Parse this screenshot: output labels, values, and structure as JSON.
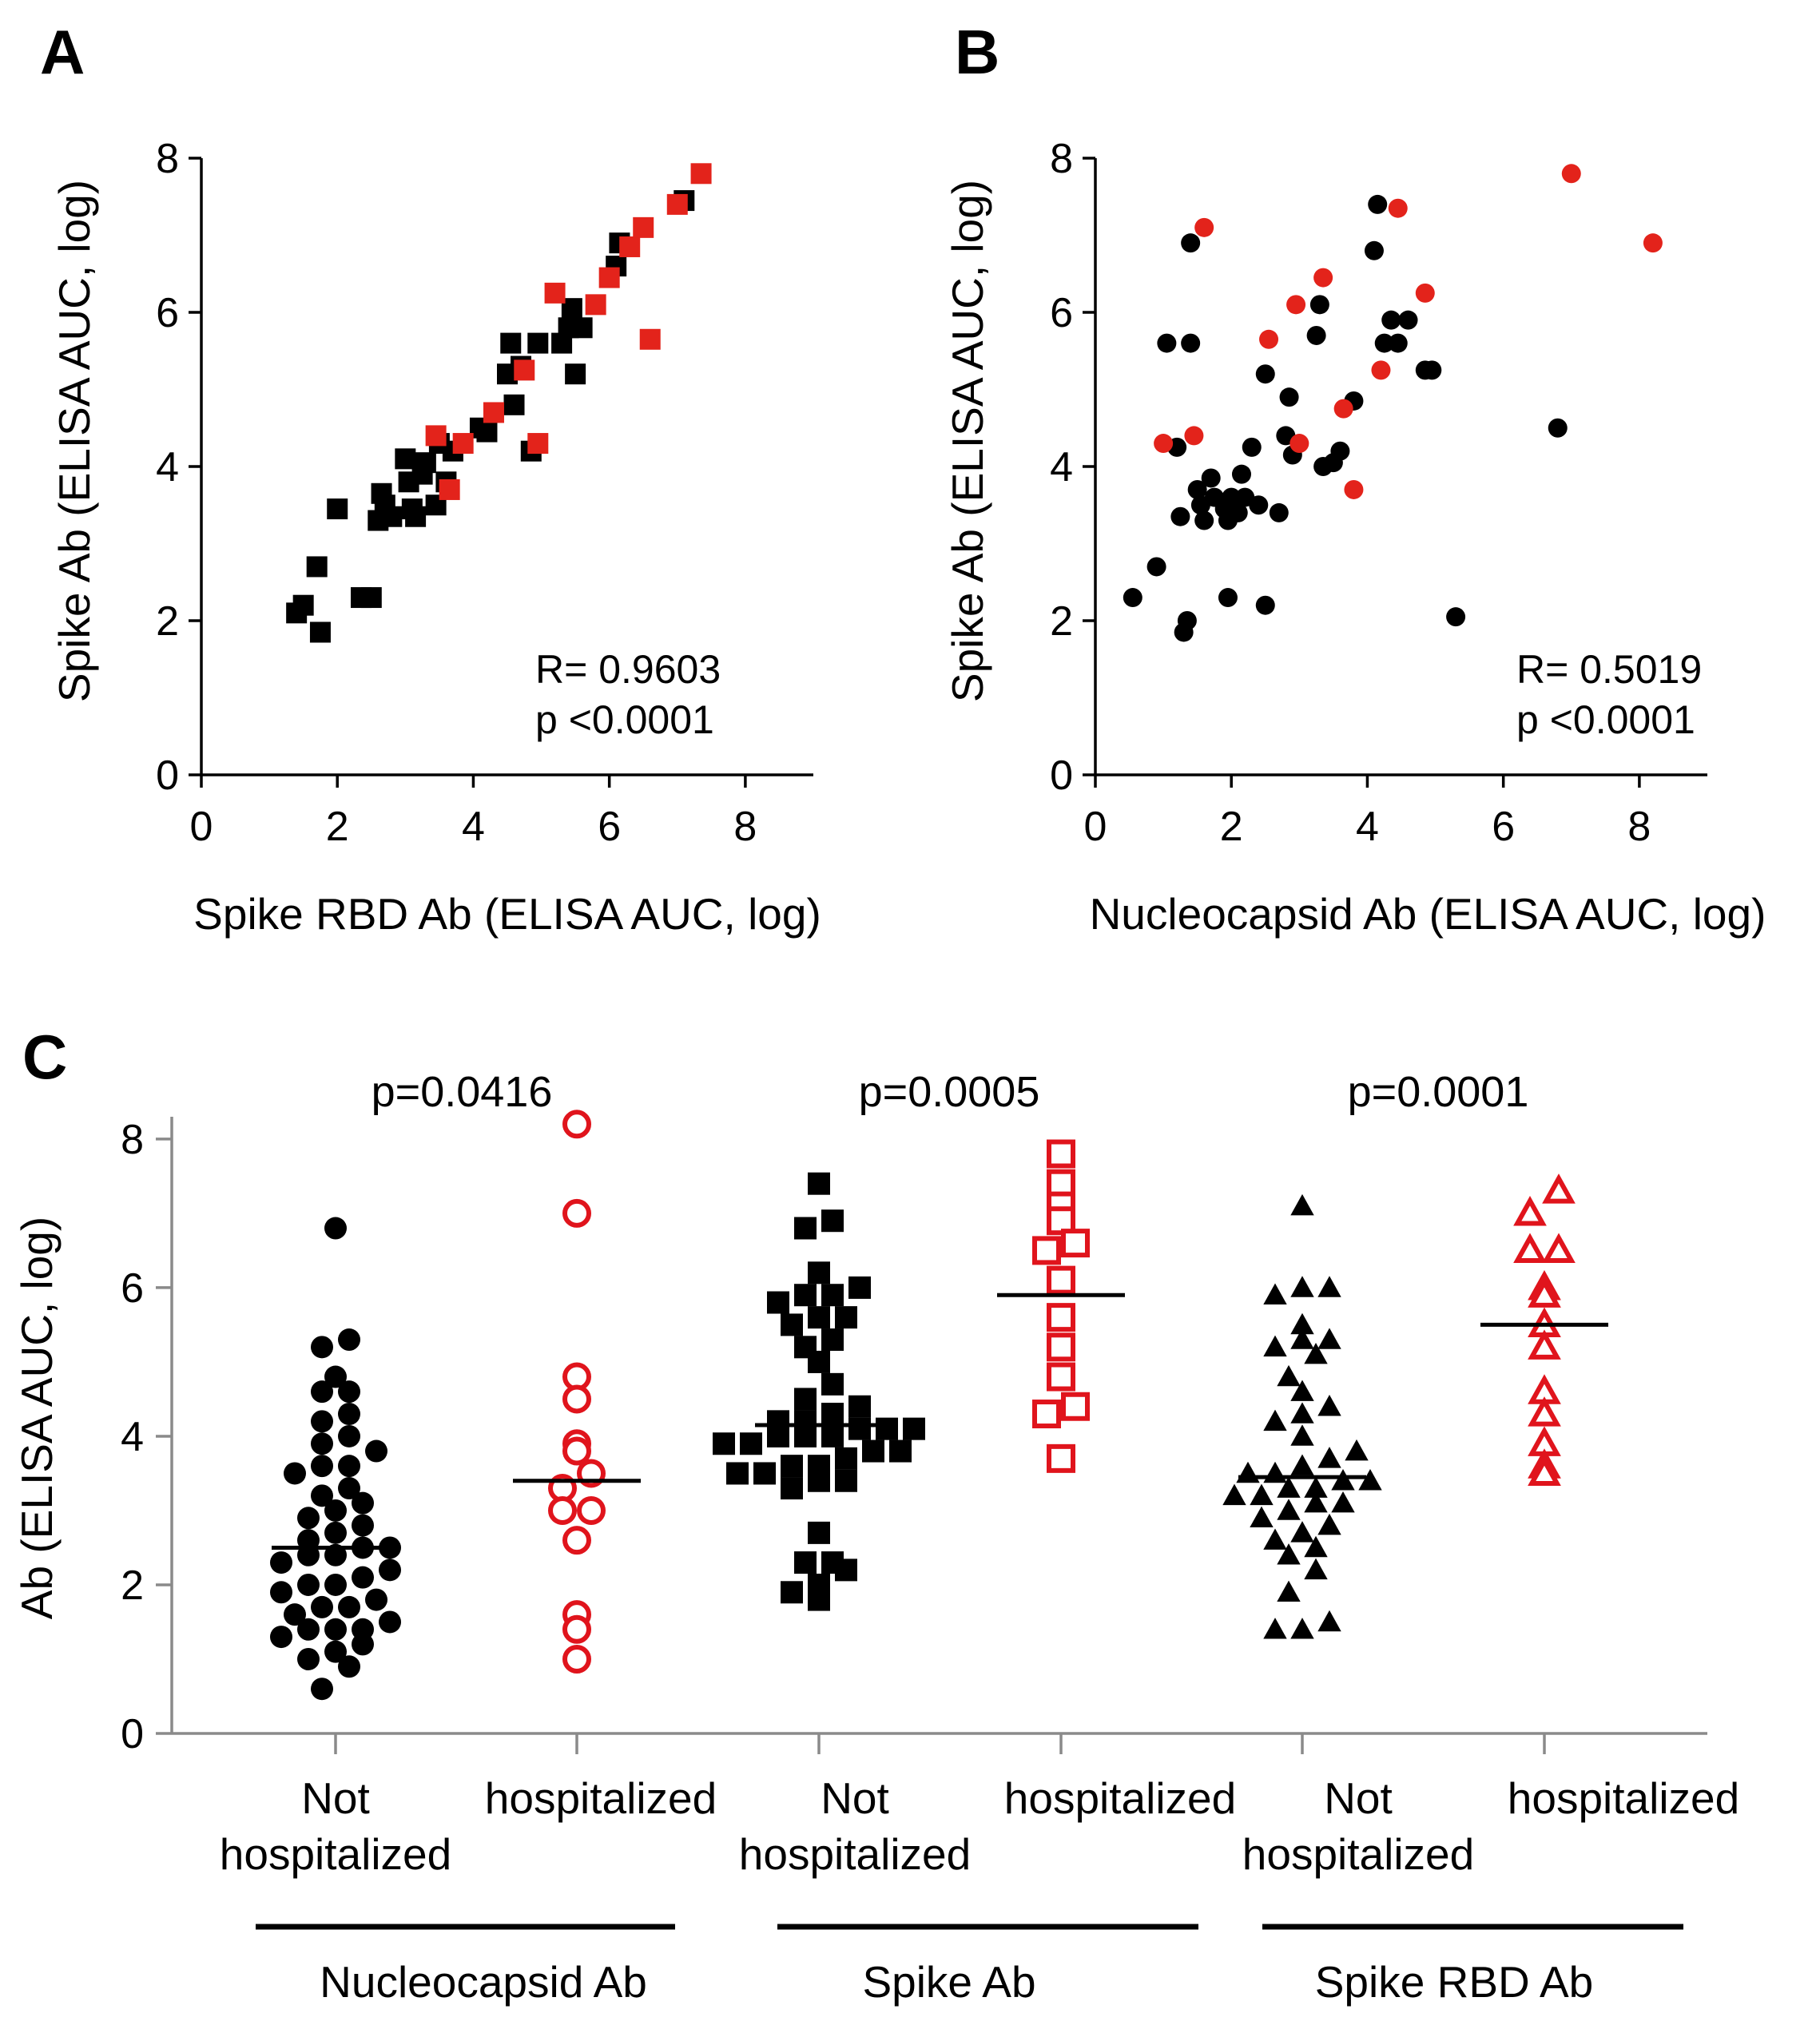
{
  "colors": {
    "black": "#000000",
    "red": "#e3231b",
    "red_open": "#e0141c",
    "axis_c": "#8a8a8a"
  },
  "chart_data": [
    {
      "panel": "A",
      "type": "scatter",
      "xlabel": "Spike RBD Ab (ELISA AUC, log)",
      "ylabel": "Spike Ab (ELISA AUC, log)",
      "xlim": [
        0,
        9
      ],
      "ylim": [
        0,
        8
      ],
      "xticks": [
        "0",
        "2",
        "4",
        "6",
        "8"
      ],
      "yticks": [
        "0",
        "2",
        "4",
        "6",
        "8"
      ],
      "grid": false,
      "marker": "square",
      "annotation": {
        "r": "R= 0.9603",
        "p": "p <0.0001"
      },
      "series": [
        {
          "name": "Not hospitalized",
          "color": "#000000",
          "points": [
            [
              1.4,
              2.1
            ],
            [
              1.5,
              2.2
            ],
            [
              1.7,
              2.7
            ],
            [
              1.75,
              1.85
            ],
            [
              2.0,
              3.45
            ],
            [
              2.35,
              2.3
            ],
            [
              2.5,
              2.3
            ],
            [
              2.6,
              3.3
            ],
            [
              2.65,
              3.65
            ],
            [
              2.7,
              3.5
            ],
            [
              2.8,
              3.35
            ],
            [
              3.0,
              4.1
            ],
            [
              3.05,
              3.8
            ],
            [
              3.1,
              3.45
            ],
            [
              3.15,
              3.35
            ],
            [
              3.25,
              3.9
            ],
            [
              3.3,
              4.05
            ],
            [
              3.45,
              3.5
            ],
            [
              3.5,
              4.3
            ],
            [
              3.6,
              3.8
            ],
            [
              3.7,
              4.2
            ],
            [
              4.1,
              4.5
            ],
            [
              4.2,
              4.45
            ],
            [
              4.5,
              5.2
            ],
            [
              4.55,
              5.6
            ],
            [
              4.6,
              4.8
            ],
            [
              4.7,
              5.3
            ],
            [
              4.85,
              4.2
            ],
            [
              4.95,
              5.6
            ],
            [
              5.3,
              5.6
            ],
            [
              5.4,
              5.8
            ],
            [
              5.45,
              6.05
            ],
            [
              5.5,
              5.2
            ],
            [
              5.6,
              5.8
            ],
            [
              6.1,
              6.6
            ],
            [
              6.15,
              6.9
            ],
            [
              7.1,
              7.45
            ]
          ]
        },
        {
          "name": "hospitalized",
          "color": "#e3231b",
          "points": [
            [
              3.45,
              4.4
            ],
            [
              3.65,
              3.7
            ],
            [
              3.85,
              4.3
            ],
            [
              4.3,
              4.7
            ],
            [
              4.75,
              5.25
            ],
            [
              4.95,
              4.3
            ],
            [
              5.2,
              6.25
            ],
            [
              5.8,
              6.1
            ],
            [
              6.0,
              6.45
            ],
            [
              6.3,
              6.85
            ],
            [
              6.5,
              7.1
            ],
            [
              6.6,
              5.65
            ],
            [
              7.0,
              7.4
            ],
            [
              7.35,
              7.8
            ]
          ]
        }
      ]
    },
    {
      "panel": "B",
      "type": "scatter",
      "xlabel": "Nucleocapsid Ab (ELISA AUC, log)",
      "ylabel": "Spike Ab (ELISA AUC, log)",
      "xlim": [
        0,
        9
      ],
      "ylim": [
        0,
        8
      ],
      "xticks": [
        "0",
        "2",
        "4",
        "6",
        "8"
      ],
      "yticks": [
        "0",
        "2",
        "4",
        "6",
        "8"
      ],
      "grid": false,
      "marker": "circle",
      "annotation": {
        "r": "R= 0.5019",
        "p": "p <0.0001"
      },
      "series": [
        {
          "name": "Not hospitalized",
          "color": "#000000",
          "points": [
            [
              0.55,
              2.3
            ],
            [
              0.9,
              2.7
            ],
            [
              1.05,
              5.6
            ],
            [
              1.2,
              4.25
            ],
            [
              1.25,
              3.35
            ],
            [
              1.3,
              1.85
            ],
            [
              1.35,
              2.0
            ],
            [
              1.4,
              5.6
            ],
            [
              1.4,
              6.9
            ],
            [
              1.5,
              3.7
            ],
            [
              1.55,
              3.5
            ],
            [
              1.6,
              3.3
            ],
            [
              1.7,
              3.85
            ],
            [
              1.75,
              3.6
            ],
            [
              1.9,
              3.45
            ],
            [
              1.95,
              3.3
            ],
            [
              1.95,
              2.3
            ],
            [
              2.0,
              3.6
            ],
            [
              2.1,
              3.4
            ],
            [
              2.15,
              3.9
            ],
            [
              2.2,
              3.6
            ],
            [
              2.3,
              4.25
            ],
            [
              2.4,
              3.5
            ],
            [
              2.5,
              5.2
            ],
            [
              2.5,
              2.2
            ],
            [
              2.7,
              3.4
            ],
            [
              2.8,
              4.4
            ],
            [
              2.85,
              4.9
            ],
            [
              2.9,
              4.15
            ],
            [
              3.25,
              5.7
            ],
            [
              3.3,
              6.1
            ],
            [
              3.35,
              4.0
            ],
            [
              3.5,
              4.05
            ],
            [
              3.6,
              4.2
            ],
            [
              3.8,
              4.85
            ],
            [
              4.1,
              6.8
            ],
            [
              4.15,
              7.4
            ],
            [
              4.25,
              5.6
            ],
            [
              4.35,
              5.9
            ],
            [
              4.45,
              5.6
            ],
            [
              4.6,
              5.9
            ],
            [
              4.85,
              5.25
            ],
            [
              4.95,
              5.25
            ],
            [
              5.3,
              2.05
            ],
            [
              6.8,
              4.5
            ]
          ]
        },
        {
          "name": "hospitalized",
          "color": "#e3231b",
          "points": [
            [
              1.0,
              4.3
            ],
            [
              1.45,
              4.4
            ],
            [
              1.6,
              7.1
            ],
            [
              2.55,
              5.65
            ],
            [
              2.95,
              6.1
            ],
            [
              3.0,
              4.3
            ],
            [
              3.35,
              6.45
            ],
            [
              3.65,
              4.75
            ],
            [
              3.8,
              3.7
            ],
            [
              4.2,
              5.25
            ],
            [
              4.45,
              7.35
            ],
            [
              4.85,
              6.25
            ],
            [
              7.0,
              7.8
            ],
            [
              8.2,
              6.9
            ]
          ]
        }
      ]
    },
    {
      "panel": "C",
      "type": "scatter",
      "ylabel": "Ab (ELISA AUC, log)",
      "ylim": [
        0,
        8.3
      ],
      "yticks": [
        "0",
        "2",
        "4",
        "6",
        "8"
      ],
      "grid": false,
      "categories": [
        {
          "line1": "Not",
          "line2": "hospitalized"
        },
        {
          "line1": "hospitalized",
          "line2": ""
        },
        {
          "line1": "Not",
          "line2": "hospitalized"
        },
        {
          "line1": "hospitalized",
          "line2": ""
        },
        {
          "line1": "Not",
          "line2": "hospitalized"
        },
        {
          "line1": "hospitalized",
          "line2": ""
        }
      ],
      "groups": [
        "Nucleocapsid Ab",
        "Spike Ab",
        "Spike RBD Ab"
      ],
      "pvalues": [
        "p=0.0416",
        "p=0.0005",
        "p=0.0001"
      ],
      "series": [
        {
          "name": "Nucleocapsid Ab / Not hospitalized",
          "category": 0,
          "marker": "circle",
          "fill": "solid",
          "color": "#000000",
          "mean": 2.5,
          "values": [
            0.6,
            0.9,
            1.0,
            1.1,
            1.2,
            1.3,
            1.4,
            1.4,
            1.4,
            1.5,
            1.6,
            1.7,
            1.7,
            1.8,
            1.9,
            2.0,
            2.0,
            2.1,
            2.2,
            2.3,
            2.4,
            2.4,
            2.5,
            2.5,
            2.6,
            2.7,
            2.8,
            2.9,
            3.0,
            3.1,
            3.2,
            3.3,
            3.5,
            3.6,
            3.6,
            3.8,
            3.9,
            4.0,
            4.2,
            4.3,
            4.6,
            4.6,
            4.8,
            5.2,
            5.3,
            6.8
          ]
        },
        {
          "name": "Nucleocapsid Ab / hospitalized",
          "category": 1,
          "marker": "circle",
          "fill": "open",
          "color": "#e0141c",
          "mean": 3.4,
          "values": [
            1.0,
            1.4,
            1.6,
            2.6,
            3.0,
            3.0,
            3.3,
            3.5,
            3.8,
            3.9,
            4.5,
            4.8,
            7.0,
            8.2
          ]
        },
        {
          "name": "Spike Ab / Not hospitalized",
          "category": 2,
          "marker": "square",
          "fill": "solid",
          "color": "#000000",
          "mean": 4.15,
          "values": [
            1.8,
            1.9,
            2.0,
            2.2,
            2.3,
            2.3,
            2.7,
            3.3,
            3.4,
            3.4,
            3.5,
            3.5,
            3.6,
            3.6,
            3.7,
            3.8,
            3.8,
            3.9,
            3.9,
            4.0,
            4.0,
            4.0,
            4.1,
            4.1,
            4.1,
            4.2,
            4.2,
            4.3,
            4.4,
            4.5,
            4.7,
            5.0,
            5.2,
            5.3,
            5.5,
            5.6,
            5.6,
            5.8,
            5.9,
            5.9,
            6.0,
            6.2,
            6.8,
            6.9,
            7.4
          ]
        },
        {
          "name": "Spike Ab / hospitalized",
          "category": 3,
          "marker": "square",
          "fill": "open",
          "color": "#e0141c",
          "mean": 5.9,
          "values": [
            3.7,
            4.3,
            4.4,
            4.8,
            5.2,
            5.6,
            6.1,
            6.5,
            6.6,
            6.9,
            7.1,
            7.4,
            7.8
          ]
        },
        {
          "name": "Spike RBD Ab / Not hospitalized",
          "category": 4,
          "marker": "triangle",
          "fill": "solid",
          "color": "#000000",
          "mean": 3.45,
          "values": [
            1.4,
            1.4,
            1.5,
            1.9,
            2.2,
            2.4,
            2.5,
            2.6,
            2.7,
            2.8,
            2.9,
            3.0,
            3.1,
            3.1,
            3.2,
            3.2,
            3.3,
            3.3,
            3.4,
            3.4,
            3.5,
            3.5,
            3.6,
            3.7,
            3.8,
            4.0,
            4.2,
            4.3,
            4.4,
            4.6,
            4.8,
            5.1,
            5.2,
            5.3,
            5.3,
            5.5,
            5.9,
            6.0,
            6.0,
            7.1
          ]
        },
        {
          "name": "Spike RBD Ab / hospitalized",
          "category": 5,
          "marker": "triangle",
          "fill": "open",
          "color": "#e0141c",
          "mean": 5.5,
          "values": [
            3.5,
            3.6,
            3.9,
            4.3,
            4.6,
            5.2,
            5.5,
            5.9,
            6.0,
            6.5,
            6.5,
            7.0,
            7.3
          ]
        }
      ]
    }
  ]
}
